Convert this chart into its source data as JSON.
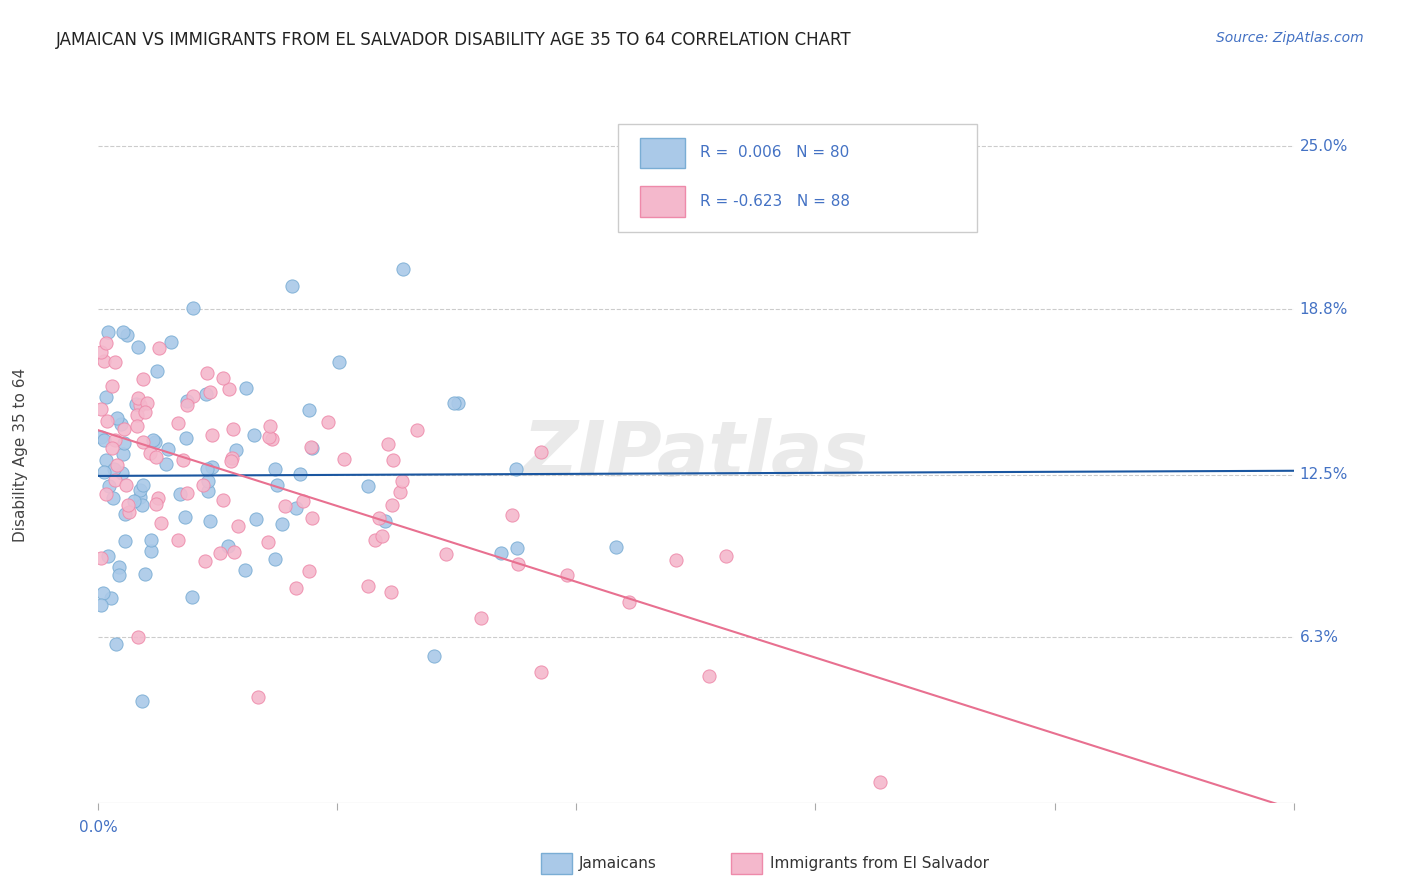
{
  "title": "JAMAICAN VS IMMIGRANTS FROM EL SALVADOR DISABILITY AGE 35 TO 64 CORRELATION CHART",
  "source": "Source: ZipAtlas.com",
  "ylabel": "Disability Age 35 to 64",
  "ytick_labels": [
    "6.3%",
    "12.5%",
    "18.8%",
    "25.0%"
  ],
  "ytick_values": [
    0.063,
    0.125,
    0.188,
    0.25
  ],
  "xlim": [
    0.0,
    0.5
  ],
  "ylim": [
    0.0,
    0.265
  ],
  "r1": 0.006,
  "n1": 80,
  "r2": -0.623,
  "n2": 88,
  "line1_color": "#1a56a0",
  "line2_color": "#e87090",
  "dot1_facecolor": "#aac9e8",
  "dot1_edgecolor": "#7aadd4",
  "dot2_facecolor": "#f4b8cc",
  "dot2_edgecolor": "#ee8aaa",
  "watermark": "ZIPatlas",
  "background_color": "#ffffff",
  "grid_color": "#cccccc",
  "title_color": "#222222",
  "axis_label_color": "#4472c4",
  "seed1": 42,
  "seed2": 99
}
